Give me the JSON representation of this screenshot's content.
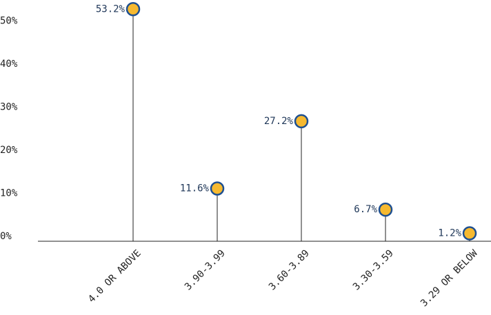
{
  "chart_data": {
    "type": "lollipop",
    "categories": [
      "4.0 OR ABOVE",
      "3.90-3.99",
      "3.60-3.89",
      "3.30-3.59",
      "3.29 OR BELOW"
    ],
    "values": [
      53.2,
      11.6,
      27.2,
      6.7,
      1.2
    ],
    "value_labels": [
      "53.2%",
      "11.6%",
      "27.2%",
      "6.7%",
      "1.2%"
    ],
    "color": "#f6b930",
    "edge_color": "#1d4f91",
    "ylim": [
      0,
      55
    ],
    "yticks": [
      {
        "value": 0,
        "label": "0%"
      },
      {
        "value": 10,
        "label": "10%"
      },
      {
        "value": 20,
        "label": "20%"
      },
      {
        "value": 30,
        "label": "30%"
      },
      {
        "value": 40,
        "label": "40%"
      },
      {
        "value": 50,
        "label": "50%"
      }
    ]
  }
}
